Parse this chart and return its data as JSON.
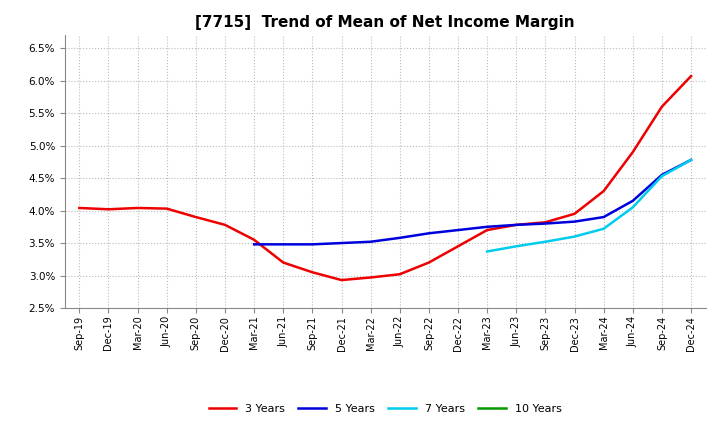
{
  "title": "[7715]  Trend of Mean of Net Income Margin",
  "background_color": "#ffffff",
  "grid_color": "#bbbbbb",
  "ylim": [
    0.025,
    0.067
  ],
  "yticks": [
    0.025,
    0.03,
    0.035,
    0.04,
    0.045,
    0.05,
    0.055,
    0.06,
    0.065
  ],
  "x_labels": [
    "Sep-19",
    "Dec-19",
    "Mar-20",
    "Jun-20",
    "Sep-20",
    "Dec-20",
    "Mar-21",
    "Jun-21",
    "Sep-21",
    "Dec-21",
    "Mar-22",
    "Jun-22",
    "Sep-22",
    "Dec-22",
    "Mar-23",
    "Jun-23",
    "Sep-23",
    "Dec-23",
    "Mar-24",
    "Jun-24",
    "Sep-24",
    "Dec-24"
  ],
  "series_3y": [
    0.0404,
    0.0402,
    0.0404,
    0.0403,
    0.039,
    0.0378,
    0.0355,
    0.032,
    0.0305,
    0.0293,
    0.0297,
    0.0302,
    0.032,
    0.0345,
    0.037,
    0.0378,
    0.0382,
    0.0395,
    0.043,
    0.049,
    0.056,
    0.0607
  ],
  "series_5y": [
    null,
    null,
    null,
    null,
    null,
    null,
    0.0348,
    0.0348,
    0.0348,
    0.035,
    0.0352,
    0.0358,
    0.0365,
    0.037,
    0.0375,
    0.0378,
    0.038,
    0.0383,
    0.039,
    0.0415,
    0.0455,
    0.0478
  ],
  "series_7y": [
    null,
    null,
    null,
    null,
    null,
    null,
    null,
    null,
    null,
    null,
    null,
    null,
    null,
    null,
    0.0337,
    0.0345,
    0.0352,
    0.036,
    0.0372,
    0.0405,
    0.0453,
    0.0478
  ],
  "series_10y": [
    null,
    null,
    null,
    null,
    null,
    null,
    null,
    null,
    null,
    null,
    null,
    null,
    null,
    null,
    null,
    null,
    null,
    null,
    null,
    null,
    null,
    null
  ],
  "color_3y": "#ee0000",
  "color_5y": "#0000dd",
  "color_7y": "#00ccee",
  "color_10y": "#009900",
  "line_width": 1.8,
  "title_fontsize": 11,
  "tick_fontsize": 7,
  "legend_fontsize": 8,
  "legend_labels": [
    "3 Years",
    "5 Years",
    "7 Years",
    "10 Years"
  ]
}
